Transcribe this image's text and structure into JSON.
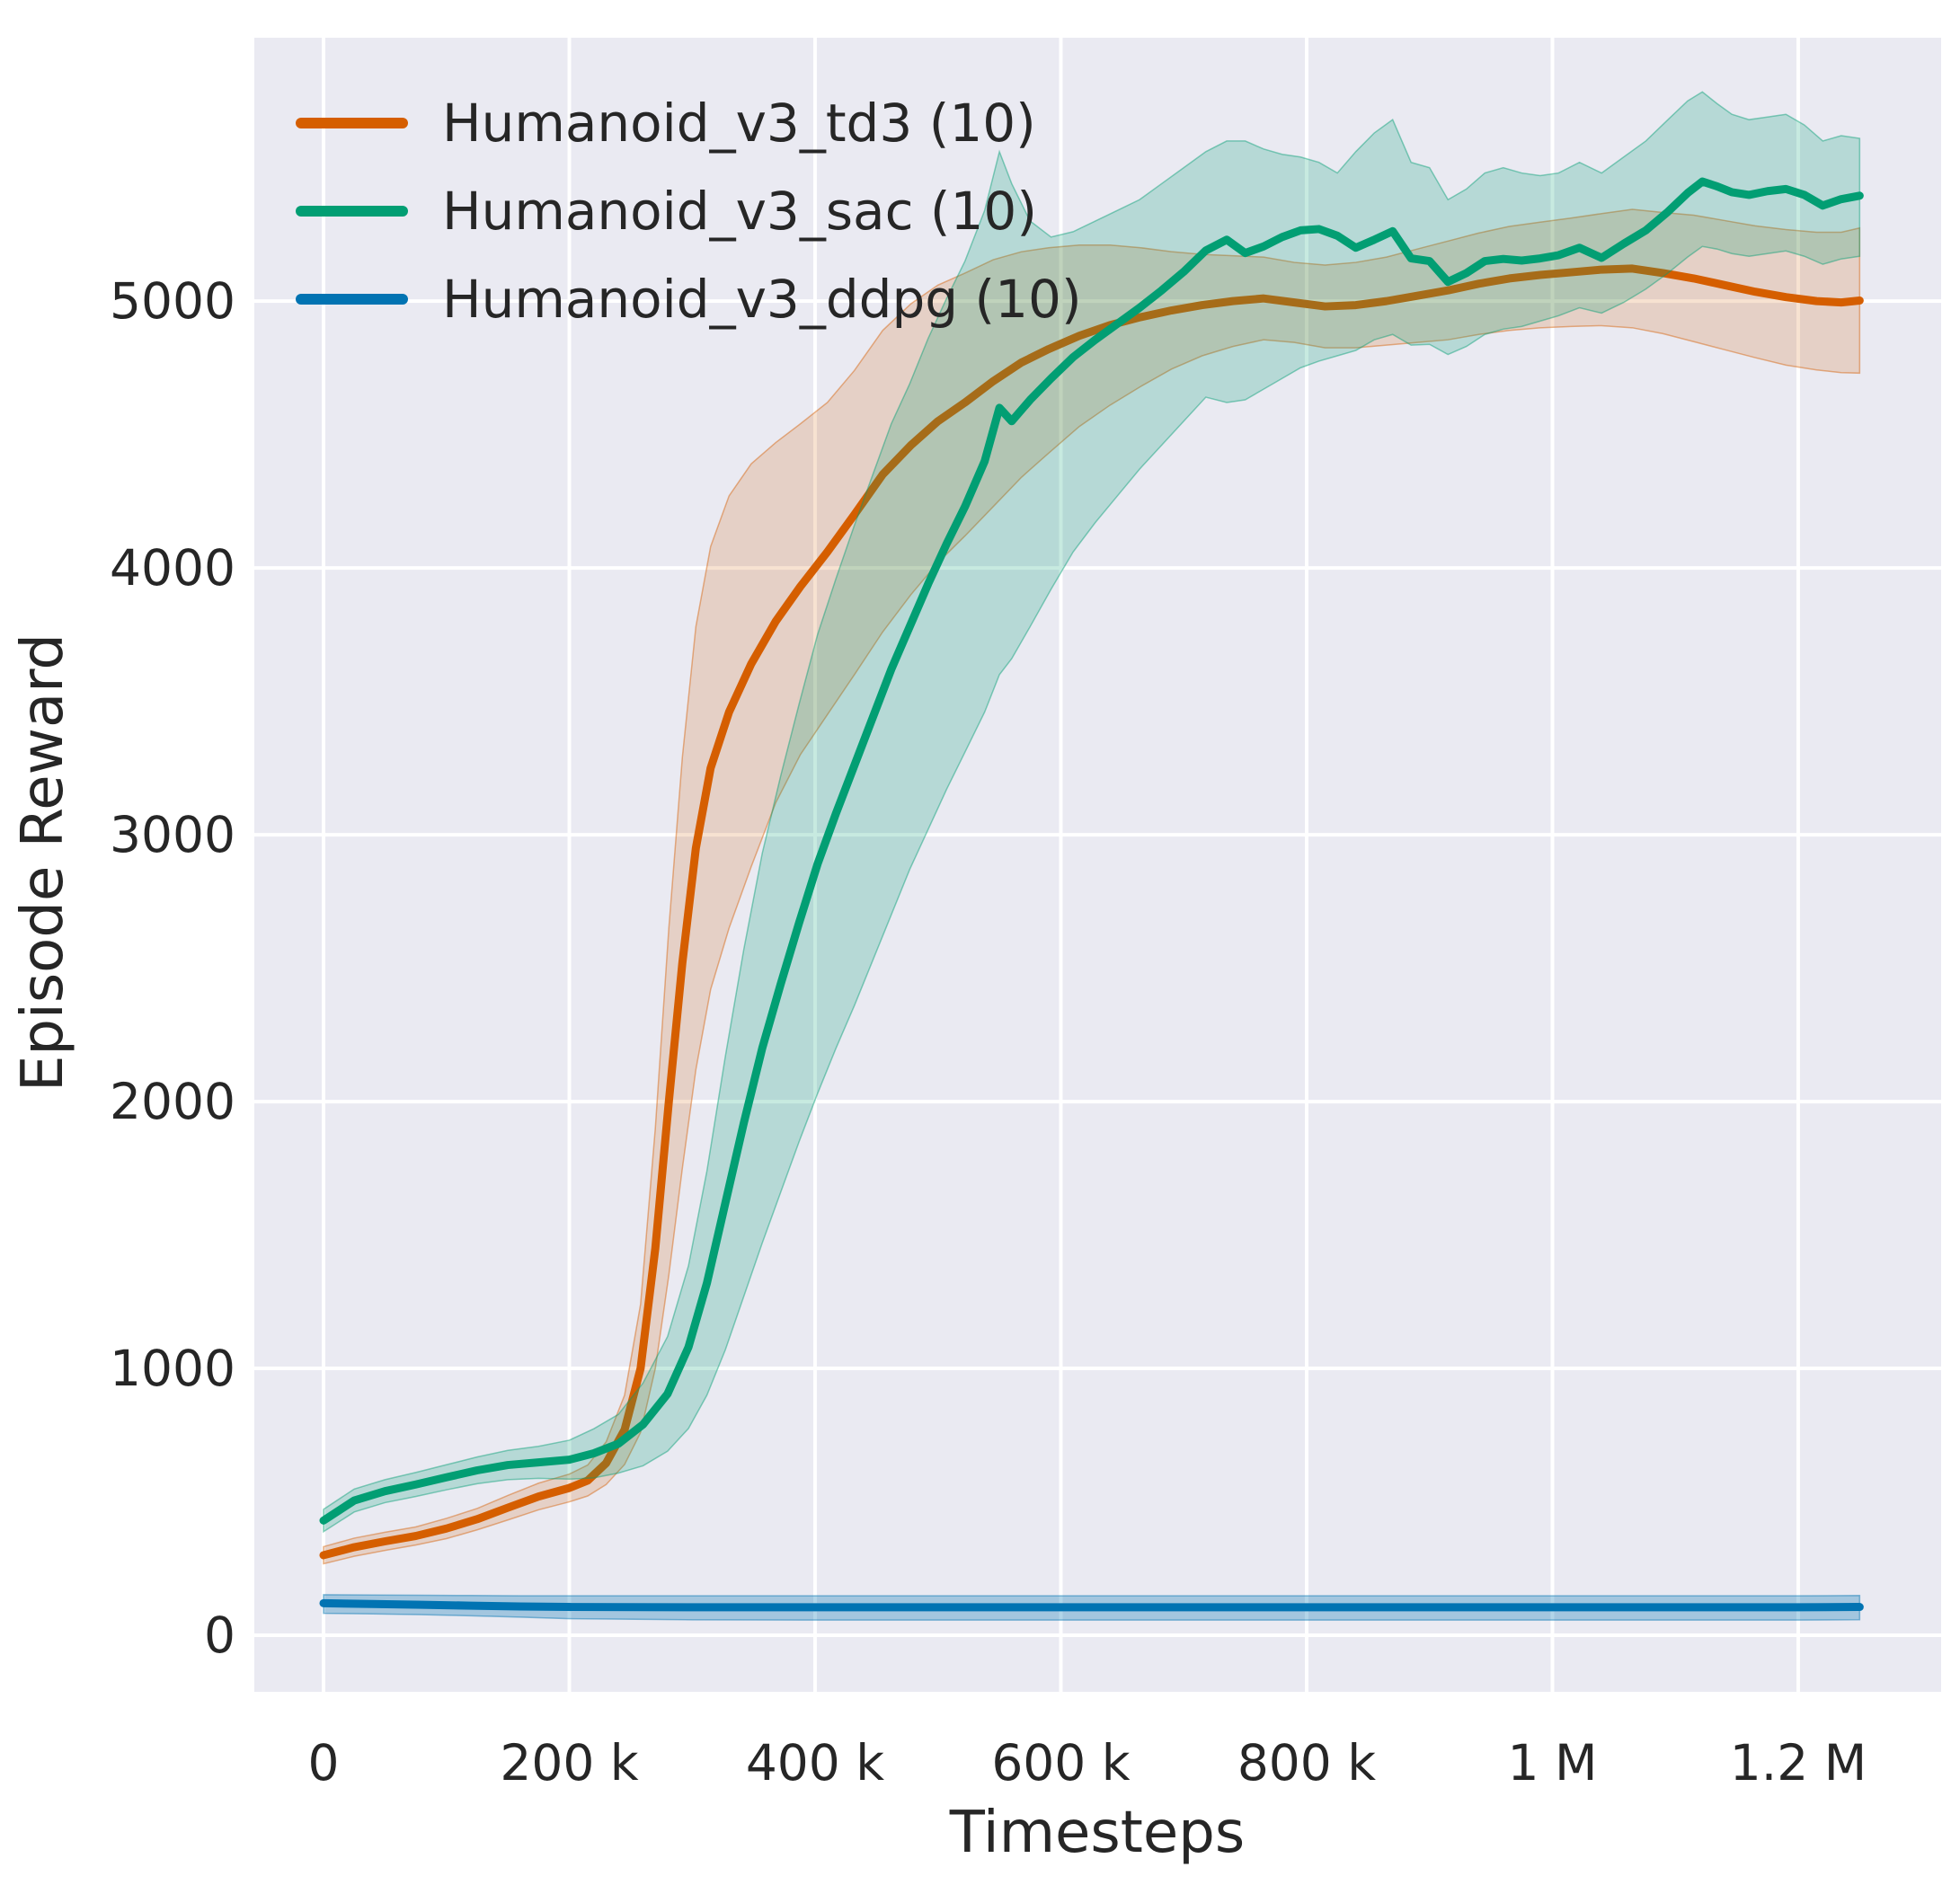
{
  "figure": {
    "background": "#ffffff",
    "plot_background": "#eaeaf2",
    "grid_color": "#ffffff",
    "text_color": "#262626"
  },
  "chart_data": {
    "type": "line",
    "title": "",
    "xlabel": "Timesteps",
    "ylabel": "Episode Reward",
    "grid": true,
    "legend_position": "upper-left",
    "xlim": [
      -56300,
      1316300
    ],
    "ylim": [
      -212,
      5987
    ],
    "xticks": [
      {
        "value": 0,
        "label": "0"
      },
      {
        "value": 200000,
        "label": "200 k"
      },
      {
        "value": 400000,
        "label": "400 k"
      },
      {
        "value": 600000,
        "label": "600 k"
      },
      {
        "value": 800000,
        "label": "800 k"
      },
      {
        "value": 1000000,
        "label": "1 M"
      },
      {
        "value": 1200000,
        "label": "1.2 M"
      }
    ],
    "yticks": [
      {
        "value": 0,
        "label": "0"
      },
      {
        "value": 1000,
        "label": "1000"
      },
      {
        "value": 2000,
        "label": "2000"
      },
      {
        "value": 3000,
        "label": "3000"
      },
      {
        "value": 4000,
        "label": "4000"
      },
      {
        "value": 5000,
        "label": "5000"
      }
    ],
    "series": [
      {
        "name": "td3",
        "label": "Humanoid_v3_td3 (10)",
        "color": "#d55e00",
        "band_alpha": 0.18,
        "x": [
          0,
          25000,
          50000,
          75000,
          100000,
          125000,
          150000,
          175000,
          200000,
          215000,
          230000,
          245000,
          258000,
          270000,
          281000,
          292000,
          303000,
          315000,
          330000,
          348000,
          368000,
          388000,
          410000,
          432000,
          455000,
          478000,
          500000,
          522000,
          545000,
          568000,
          590000,
          615000,
          640000,
          665000,
          690000,
          715000,
          740000,
          765000,
          790000,
          815000,
          840000,
          865000,
          890000,
          915000,
          940000,
          965000,
          990000,
          1015000,
          1040000,
          1065000,
          1090000,
          1115000,
          1140000,
          1165000,
          1190000,
          1215000,
          1235000,
          1250000
        ],
        "y": [
          300,
          330,
          352,
          372,
          400,
          435,
          478,
          520,
          552,
          580,
          645,
          770,
          1000,
          1450,
          2000,
          2520,
          2950,
          3250,
          3460,
          3640,
          3800,
          3930,
          4060,
          4200,
          4350,
          4460,
          4550,
          4620,
          4700,
          4770,
          4820,
          4870,
          4910,
          4940,
          4965,
          4985,
          5000,
          5010,
          4995,
          4980,
          4985,
          5000,
          5020,
          5040,
          5065,
          5085,
          5098,
          5108,
          5118,
          5122,
          5105,
          5085,
          5060,
          5035,
          5015,
          5000,
          4995,
          5002
        ],
        "lo": [
          268,
          296,
          318,
          338,
          362,
          395,
          432,
          470,
          500,
          522,
          565,
          640,
          760,
          1000,
          1350,
          1750,
          2120,
          2420,
          2650,
          2880,
          3120,
          3300,
          3450,
          3600,
          3760,
          3900,
          4020,
          4120,
          4230,
          4340,
          4430,
          4530,
          4610,
          4680,
          4745,
          4795,
          4830,
          4855,
          4845,
          4825,
          4825,
          4835,
          4845,
          4855,
          4875,
          4890,
          4900,
          4905,
          4908,
          4900,
          4878,
          4848,
          4818,
          4788,
          4760,
          4742,
          4732,
          4730
        ],
        "hi": [
          332,
          364,
          386,
          406,
          438,
          475,
          524,
          570,
          604,
          638,
          725,
          900,
          1240,
          1900,
          2650,
          3290,
          3780,
          4080,
          4270,
          4390,
          4470,
          4540,
          4620,
          4740,
          4890,
          4990,
          5060,
          5105,
          5155,
          5185,
          5200,
          5210,
          5210,
          5200,
          5185,
          5175,
          5170,
          5165,
          5145,
          5135,
          5145,
          5165,
          5195,
          5225,
          5255,
          5280,
          5296,
          5311,
          5328,
          5344,
          5332,
          5322,
          5302,
          5282,
          5268,
          5258,
          5258,
          5274
        ]
      },
      {
        "name": "sac",
        "label": "Humanoid_v3_sac (10)",
        "color": "#029e73",
        "band_alpha": 0.22,
        "x": [
          0,
          25000,
          50000,
          75000,
          100000,
          125000,
          150000,
          175000,
          200000,
          220000,
          240000,
          260000,
          280000,
          297000,
          312000,
          327000,
          342000,
          357000,
          372000,
          387000,
          402000,
          417000,
          432000,
          447000,
          462000,
          477000,
          492000,
          507000,
          522000,
          538000,
          550000,
          560000,
          575000,
          592000,
          610000,
          628000,
          646000,
          664000,
          682000,
          700000,
          718000,
          735000,
          750000,
          765000,
          780000,
          795000,
          810000,
          825000,
          840000,
          855000,
          870000,
          885000,
          900000,
          915000,
          930000,
          945000,
          960000,
          975000,
          990000,
          1005000,
          1022000,
          1040000,
          1058000,
          1076000,
          1094000,
          1110000,
          1122000,
          1134000,
          1146000,
          1160000,
          1175000,
          1190000,
          1205000,
          1220000,
          1235000,
          1250000
        ],
        "y": [
          430,
          505,
          540,
          565,
          592,
          618,
          638,
          648,
          658,
          682,
          718,
          790,
          905,
          1080,
          1320,
          1620,
          1920,
          2200,
          2440,
          2670,
          2890,
          3080,
          3260,
          3440,
          3620,
          3780,
          3940,
          4090,
          4230,
          4400,
          4600,
          4550,
          4630,
          4710,
          4790,
          4855,
          4915,
          4975,
          5040,
          5110,
          5190,
          5230,
          5180,
          5205,
          5240,
          5265,
          5270,
          5245,
          5200,
          5230,
          5262,
          5160,
          5150,
          5072,
          5105,
          5150,
          5158,
          5152,
          5160,
          5172,
          5200,
          5162,
          5215,
          5265,
          5335,
          5405,
          5448,
          5430,
          5408,
          5398,
          5412,
          5420,
          5398,
          5358,
          5382,
          5395
        ],
        "lo": [
          388,
          462,
          497,
          520,
          545,
          568,
          583,
          588,
          585,
          590,
          608,
          635,
          690,
          775,
          900,
          1070,
          1270,
          1470,
          1660,
          1850,
          2030,
          2200,
          2360,
          2530,
          2700,
          2870,
          3020,
          3170,
          3310,
          3460,
          3600,
          3660,
          3780,
          3920,
          4060,
          4170,
          4270,
          4370,
          4460,
          4550,
          4640,
          4620,
          4630,
          4670,
          4710,
          4750,
          4775,
          4795,
          4815,
          4855,
          4875,
          4835,
          4838,
          4800,
          4830,
          4875,
          4895,
          4905,
          4925,
          4945,
          4975,
          4955,
          4995,
          5045,
          5105,
          5165,
          5205,
          5195,
          5178,
          5168,
          5178,
          5188,
          5168,
          5138,
          5158,
          5168
        ],
        "hi": [
          472,
          548,
          583,
          610,
          639,
          668,
          693,
          708,
          731,
          774,
          828,
          945,
          1120,
          1385,
          1740,
          2170,
          2570,
          2930,
          3220,
          3490,
          3750,
          3960,
          4160,
          4350,
          4540,
          4690,
          4860,
          5010,
          5150,
          5340,
          5560,
          5440,
          5300,
          5240,
          5260,
          5300,
          5340,
          5380,
          5440,
          5500,
          5560,
          5600,
          5600,
          5570,
          5550,
          5540,
          5520,
          5480,
          5560,
          5630,
          5680,
          5520,
          5500,
          5380,
          5420,
          5480,
          5500,
          5480,
          5470,
          5480,
          5520,
          5480,
          5540,
          5600,
          5680,
          5750,
          5784,
          5740,
          5700,
          5680,
          5690,
          5700,
          5660,
          5600,
          5620,
          5610
        ]
      },
      {
        "name": "ddpg",
        "label": "Humanoid_v3_ddpg (10)",
        "color": "#0173b2",
        "band_alpha": 0.3,
        "x": [
          0,
          40000,
          80000,
          120000,
          160000,
          200000,
          300000,
          400000,
          500000,
          600000,
          700000,
          800000,
          900000,
          1000000,
          1100000,
          1200000,
          1250000
        ],
        "y": [
          120,
          117,
          114,
          111,
          108,
          106,
          105,
          105,
          105,
          105,
          105,
          105,
          105,
          105,
          105,
          105,
          106
        ],
        "lo": [
          82,
          80,
          77,
          73,
          68,
          62,
          58,
          57,
          57,
          57,
          57,
          57,
          57,
          57,
          57,
          57,
          58
        ],
        "hi": [
          152,
          151,
          150,
          149,
          148,
          148,
          148,
          148,
          148,
          148,
          148,
          148,
          148,
          148,
          148,
          148,
          149
        ]
      }
    ]
  }
}
